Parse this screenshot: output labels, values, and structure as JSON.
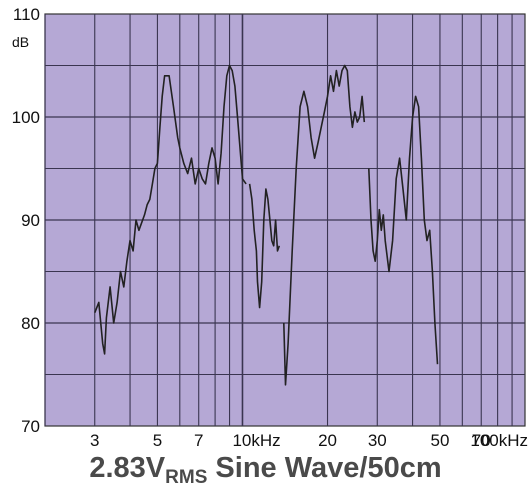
{
  "chart_data": {
    "type": "line",
    "title": "",
    "ylabel_unit": "dB",
    "ylim": [
      70,
      110
    ],
    "xlim": [
      2,
      100
    ],
    "xscale": "log",
    "x_unit": "kHz",
    "y_ticks": [
      {
        "value": 110,
        "label": "110"
      },
      {
        "value": 100,
        "label": "100"
      },
      {
        "value": 90,
        "label": "90"
      },
      {
        "value": 80,
        "label": "80"
      },
      {
        "value": 70,
        "label": "70"
      }
    ],
    "x_ticks": [
      {
        "value": 3,
        "label": "3"
      },
      {
        "value": 5,
        "label": "5"
      },
      {
        "value": 7,
        "label": "7"
      },
      {
        "value": 10,
        "label": "10kHz"
      },
      {
        "value": 20,
        "label": "20"
      },
      {
        "value": 30,
        "label": "30"
      },
      {
        "value": 50,
        "label": "50"
      },
      {
        "value": 70,
        "label": "70"
      },
      {
        "value": 100,
        "label": "100kHz"
      }
    ],
    "grid": true,
    "background_color": "#b5a8d5",
    "line_color": "#222222",
    "series": [
      {
        "segments": [
          [
            [
              3.0,
              81.0
            ],
            [
              3.1,
              82.0
            ],
            [
              3.2,
              78.0
            ],
            [
              3.25,
              77.0
            ],
            [
              3.3,
              80.5
            ],
            [
              3.4,
              83.5
            ],
            [
              3.5,
              80.0
            ],
            [
              3.6,
              82.0
            ],
            [
              3.7,
              85.0
            ],
            [
              3.8,
              83.5
            ],
            [
              3.9,
              86.0
            ],
            [
              4.0,
              88.0
            ],
            [
              4.1,
              87.0
            ],
            [
              4.2,
              90.0
            ],
            [
              4.3,
              89.0
            ],
            [
              4.5,
              90.5
            ],
            [
              4.6,
              91.5
            ],
            [
              4.7,
              92.0
            ],
            [
              4.8,
              93.5
            ],
            [
              4.9,
              95.0
            ],
            [
              5.0,
              95.5
            ],
            [
              5.1,
              99.0
            ],
            [
              5.2,
              102.0
            ],
            [
              5.3,
              104.0
            ],
            [
              5.5,
              104.0
            ],
            [
              5.7,
              101.0
            ],
            [
              5.9,
              98.0
            ],
            [
              6.0,
              97.0
            ],
            [
              6.2,
              95.5
            ],
            [
              6.4,
              94.5
            ],
            [
              6.6,
              96.0
            ],
            [
              6.8,
              93.5
            ],
            [
              7.0,
              95.0
            ],
            [
              7.2,
              94.0
            ],
            [
              7.4,
              93.5
            ],
            [
              7.6,
              95.5
            ],
            [
              7.8,
              97.0
            ],
            [
              8.0,
              96.0
            ],
            [
              8.2,
              93.5
            ],
            [
              8.4,
              96.5
            ],
            [
              8.6,
              101.0
            ],
            [
              8.8,
              104.0
            ],
            [
              9.0,
              105.0
            ],
            [
              9.2,
              104.5
            ],
            [
              9.4,
              103.0
            ],
            [
              9.6,
              100.0
            ],
            [
              9.8,
              97.0
            ],
            [
              10.0,
              94.0
            ],
            [
              10.3,
              93.5
            ]
          ],
          [
            [
              10.6,
              93.5
            ],
            [
              10.8,
              92.0
            ],
            [
              11.0,
              89.0
            ],
            [
              11.2,
              87.0
            ],
            [
              11.3,
              84.0
            ],
            [
              11.5,
              81.5
            ],
            [
              11.7,
              84.0
            ],
            [
              11.9,
              90.0
            ],
            [
              12.1,
              93.0
            ],
            [
              12.3,
              92.0
            ],
            [
              12.5,
              90.0
            ],
            [
              12.7,
              88.0
            ],
            [
              12.9,
              87.5
            ],
            [
              13.1,
              90.0
            ],
            [
              13.3,
              87.0
            ],
            [
              13.5,
              87.5
            ]
          ],
          [
            [
              14.0,
              80.0
            ],
            [
              14.2,
              74.0
            ],
            [
              14.5,
              78.0
            ],
            [
              15.0,
              87.0
            ],
            [
              15.5,
              95.0
            ],
            [
              16.0,
              101.0
            ],
            [
              16.5,
              102.5
            ],
            [
              17.0,
              101.0
            ],
            [
              17.5,
              98.0
            ],
            [
              18.0,
              96.0
            ],
            [
              18.5,
              97.5
            ],
            [
              19.0,
              99.0
            ],
            [
              19.5,
              100.5
            ],
            [
              20.0,
              102.0
            ],
            [
              20.5,
              104.0
            ],
            [
              21.0,
              102.5
            ],
            [
              21.5,
              104.5
            ],
            [
              22.0,
              103.0
            ],
            [
              22.5,
              104.5
            ],
            [
              23.0,
              105.0
            ],
            [
              23.5,
              104.5
            ],
            [
              24.0,
              101.0
            ],
            [
              24.5,
              99.0
            ],
            [
              25.0,
              100.5
            ],
            [
              25.5,
              99.5
            ],
            [
              26.0,
              100.0
            ],
            [
              26.5,
              102.0
            ],
            [
              27.0,
              99.5
            ]
          ],
          [
            [
              28.0,
              95.0
            ],
            [
              28.5,
              90.0
            ],
            [
              29.0,
              87.0
            ],
            [
              29.5,
              86.0
            ],
            [
              30.0,
              88.0
            ],
            [
              30.5,
              91.0
            ],
            [
              31.0,
              89.0
            ],
            [
              31.5,
              90.5
            ],
            [
              32.0,
              88.0
            ],
            [
              33.0,
              85.0
            ],
            [
              34.0,
              88.0
            ],
            [
              35.0,
              94.0
            ],
            [
              36.0,
              96.0
            ],
            [
              37.0,
              93.0
            ],
            [
              38.0,
              90.0
            ],
            [
              39.0,
              96.0
            ],
            [
              40.0,
              100.0
            ],
            [
              41.0,
              102.0
            ],
            [
              42.0,
              101.0
            ],
            [
              43.0,
              96.0
            ],
            [
              44.0,
              90.0
            ],
            [
              45.0,
              88.0
            ],
            [
              46.0,
              89.0
            ],
            [
              47.0,
              85.0
            ],
            [
              48.0,
              80.0
            ],
            [
              49.0,
              76.0
            ]
          ]
        ]
      }
    ]
  },
  "caption": {
    "prefix": "2.83V",
    "sub": "RMS",
    "suffix": " Sine Wave/50cm"
  }
}
